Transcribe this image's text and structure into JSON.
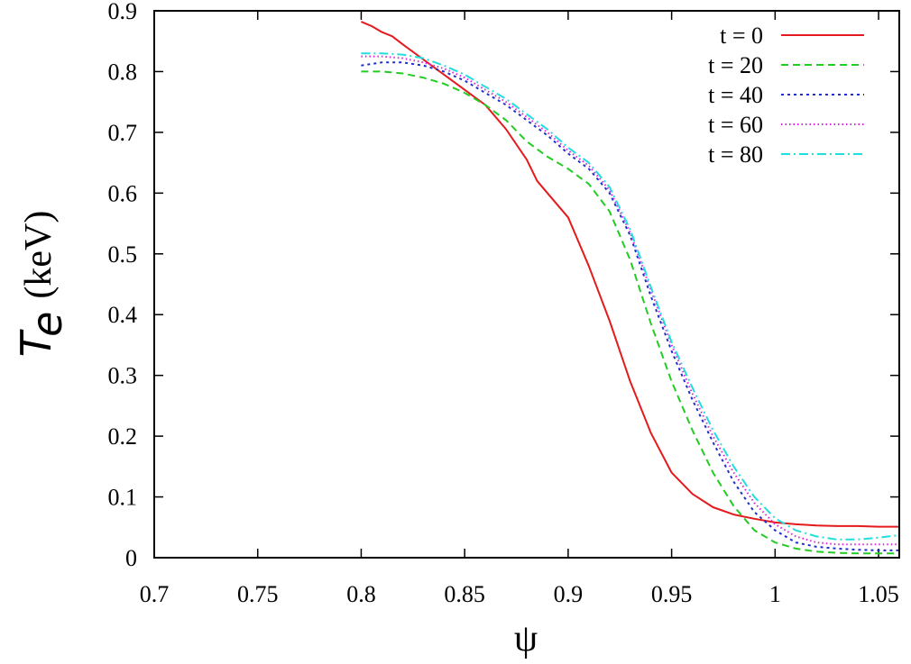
{
  "chart_data": {
    "type": "line",
    "title": "",
    "xlabel": "ψ",
    "ylabel": {
      "symbol": "T",
      "subscript": "e",
      "unit": "(keV)"
    },
    "xlim": [
      0.7,
      1.06
    ],
    "ylim": [
      0,
      0.9
    ],
    "xticks": [
      "0.7",
      "0.75",
      "0.8",
      "0.85",
      "0.9",
      "0.95",
      "1",
      "1.05"
    ],
    "yticks": [
      "0",
      "0.1",
      "0.2",
      "0.3",
      "0.4",
      "0.5",
      "0.6",
      "0.7",
      "0.8",
      "0.9"
    ],
    "grid": false,
    "legend_position": "top-right",
    "series": [
      {
        "name": "t = 0",
        "color": "#e41a1c",
        "dash": "solid",
        "x": [
          0.8,
          0.805,
          0.81,
          0.815,
          0.82,
          0.83,
          0.84,
          0.85,
          0.86,
          0.87,
          0.88,
          0.885,
          0.89,
          0.9,
          0.91,
          0.92,
          0.93,
          0.94,
          0.95,
          0.96,
          0.97,
          0.98,
          0.99,
          1.0,
          1.01,
          1.02,
          1.03,
          1.04,
          1.05,
          1.06
        ],
        "y": [
          0.882,
          0.875,
          0.865,
          0.858,
          0.845,
          0.82,
          0.795,
          0.77,
          0.745,
          0.705,
          0.655,
          0.62,
          0.6,
          0.56,
          0.48,
          0.39,
          0.29,
          0.205,
          0.14,
          0.105,
          0.083,
          0.071,
          0.064,
          0.058,
          0.055,
          0.053,
          0.052,
          0.052,
          0.051,
          0.051
        ]
      },
      {
        "name": "t = 20",
        "color": "#22cc22",
        "dash": "8,5",
        "x": [
          0.8,
          0.81,
          0.82,
          0.83,
          0.84,
          0.85,
          0.86,
          0.87,
          0.88,
          0.89,
          0.9,
          0.91,
          0.92,
          0.93,
          0.94,
          0.95,
          0.96,
          0.97,
          0.98,
          0.99,
          1.0,
          1.01,
          1.02,
          1.03,
          1.04,
          1.05,
          1.06
        ],
        "y": [
          0.8,
          0.8,
          0.797,
          0.79,
          0.78,
          0.765,
          0.745,
          0.72,
          0.685,
          0.66,
          0.64,
          0.615,
          0.57,
          0.49,
          0.385,
          0.29,
          0.21,
          0.14,
          0.085,
          0.045,
          0.025,
          0.015,
          0.01,
          0.008,
          0.007,
          0.007,
          0.007
        ]
      },
      {
        "name": "t = 40",
        "color": "#1f2fcc",
        "dash": "3,4",
        "x": [
          0.8,
          0.81,
          0.82,
          0.83,
          0.84,
          0.85,
          0.86,
          0.87,
          0.88,
          0.89,
          0.9,
          0.91,
          0.92,
          0.93,
          0.94,
          0.95,
          0.96,
          0.97,
          0.98,
          0.99,
          1.0,
          1.01,
          1.02,
          1.03,
          1.04,
          1.05,
          1.06
        ],
        "y": [
          0.81,
          0.815,
          0.815,
          0.81,
          0.8,
          0.785,
          0.765,
          0.745,
          0.72,
          0.695,
          0.665,
          0.64,
          0.6,
          0.53,
          0.43,
          0.34,
          0.26,
          0.19,
          0.125,
          0.075,
          0.045,
          0.025,
          0.018,
          0.015,
          0.013,
          0.012,
          0.012
        ]
      },
      {
        "name": "t = 60",
        "color": "#dd22dd",
        "dash": "1.5,3",
        "x": [
          0.8,
          0.81,
          0.82,
          0.83,
          0.84,
          0.85,
          0.86,
          0.87,
          0.88,
          0.89,
          0.9,
          0.91,
          0.92,
          0.93,
          0.94,
          0.95,
          0.96,
          0.97,
          0.98,
          0.99,
          1.0,
          1.01,
          1.02,
          1.03,
          1.04,
          1.05,
          1.06
        ],
        "y": [
          0.825,
          0.825,
          0.822,
          0.815,
          0.805,
          0.79,
          0.77,
          0.75,
          0.725,
          0.7,
          0.67,
          0.645,
          0.605,
          0.535,
          0.44,
          0.35,
          0.27,
          0.2,
          0.14,
          0.09,
          0.055,
          0.035,
          0.025,
          0.022,
          0.022,
          0.022,
          0.022
        ]
      },
      {
        "name": "t = 80",
        "color": "#22dddd",
        "dash": "10,4,2,4",
        "x": [
          0.8,
          0.81,
          0.82,
          0.83,
          0.84,
          0.85,
          0.86,
          0.87,
          0.88,
          0.89,
          0.9,
          0.91,
          0.92,
          0.93,
          0.94,
          0.95,
          0.96,
          0.97,
          0.98,
          0.99,
          1.0,
          1.01,
          1.02,
          1.03,
          1.04,
          1.05,
          1.06
        ],
        "y": [
          0.83,
          0.83,
          0.828,
          0.822,
          0.81,
          0.795,
          0.775,
          0.755,
          0.73,
          0.705,
          0.675,
          0.65,
          0.61,
          0.54,
          0.445,
          0.355,
          0.28,
          0.21,
          0.15,
          0.1,
          0.065,
          0.045,
          0.035,
          0.03,
          0.03,
          0.033,
          0.037
        ]
      }
    ]
  }
}
